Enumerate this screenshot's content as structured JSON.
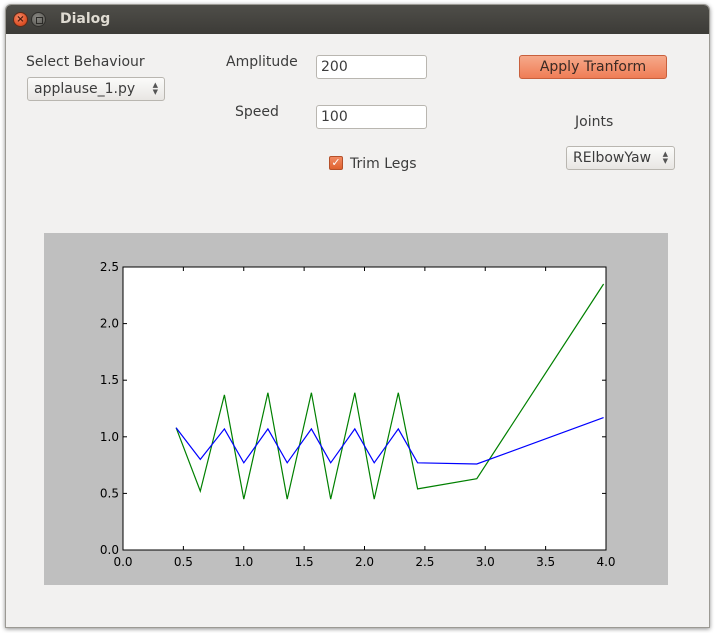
{
  "window": {
    "title": "Dialog"
  },
  "controls": {
    "behaviour_label": "Select Behaviour",
    "behaviour_value": "applause_1.py",
    "amplitude_label": "Amplitude",
    "amplitude_value": "200",
    "speed_label": "Speed",
    "speed_value": "100",
    "trim_legs_label": "Trim Legs",
    "trim_legs_checked": true,
    "apply_label": "Apply Tranform",
    "joints_label": "Joints",
    "joints_value": "RElbowYaw"
  },
  "colors": {
    "accent": "#ef7d56",
    "plot_background": "#bfbfbf",
    "series_green": "#008000",
    "series_blue": "#0000ff"
  },
  "chart_data": {
    "type": "line",
    "title": "",
    "xlabel": "",
    "ylabel": "",
    "xlim": [
      0.0,
      4.0
    ],
    "ylim": [
      0.0,
      2.5
    ],
    "xticks": [
      "0.0",
      "0.5",
      "1.0",
      "1.5",
      "2.0",
      "2.5",
      "3.0",
      "3.5",
      "4.0"
    ],
    "yticks": [
      "0.0",
      "0.5",
      "1.0",
      "1.5",
      "2.0",
      "2.5"
    ],
    "grid": false,
    "series": [
      {
        "color": "#008000",
        "x": [
          0.44,
          0.64,
          0.84,
          1.0,
          1.2,
          1.36,
          1.56,
          1.72,
          1.92,
          2.08,
          2.28,
          2.44,
          2.93,
          3.98
        ],
        "y": [
          1.08,
          0.52,
          1.37,
          0.45,
          1.39,
          0.45,
          1.39,
          0.45,
          1.39,
          0.45,
          1.39,
          0.54,
          0.63,
          2.35
        ]
      },
      {
        "color": "#0000ff",
        "x": [
          0.44,
          0.64,
          0.84,
          1.0,
          1.2,
          1.36,
          1.56,
          1.72,
          1.92,
          2.08,
          2.28,
          2.44,
          2.93,
          3.98
        ],
        "y": [
          1.08,
          0.8,
          1.07,
          0.77,
          1.07,
          0.77,
          1.07,
          0.77,
          1.07,
          0.77,
          1.07,
          0.77,
          0.76,
          1.17
        ]
      }
    ]
  }
}
